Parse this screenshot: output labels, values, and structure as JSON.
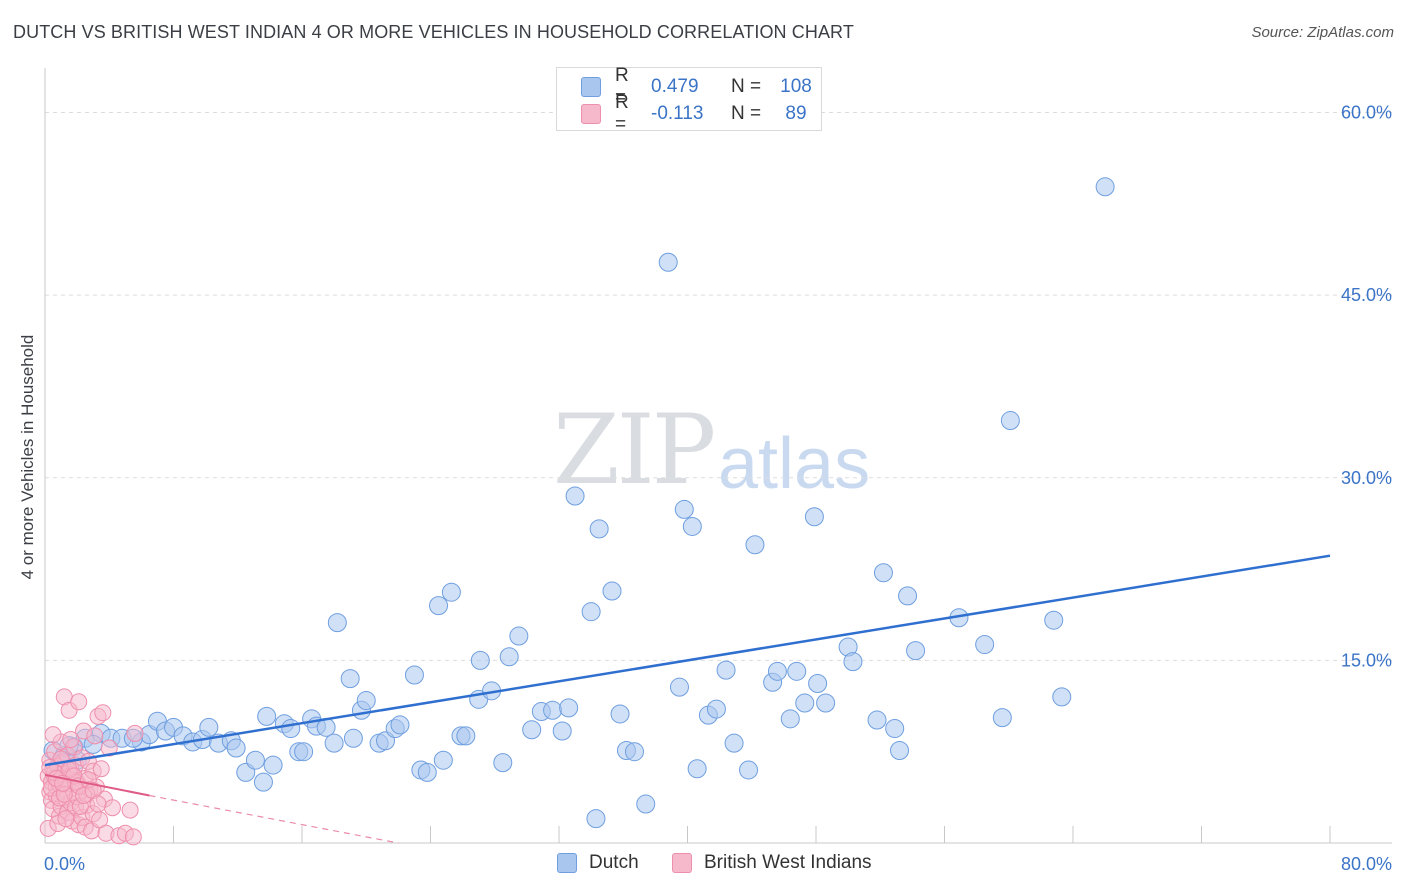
{
  "title": "DUTCH VS BRITISH WEST INDIAN 4 OR MORE VEHICLES IN HOUSEHOLD CORRELATION CHART",
  "source": "Source: ZipAtlas.com",
  "watermark": {
    "part1": "ZIP",
    "part2": "atlas"
  },
  "colors": {
    "dutch_fill": "#a9c6ee",
    "dutch_stroke": "#6f9fe0",
    "dutch_line": "#2f6fcf",
    "bwi_fill": "#f6b8cb",
    "bwi_stroke": "#ee8fad",
    "bwi_line": "#e05a86",
    "grid": "#dddddd",
    "tick_text": "#3b74c7"
  },
  "legend": {
    "rows": [
      {
        "r_label": "R =",
        "r_value": "0.479",
        "n_label": "N =",
        "n_value": "108"
      },
      {
        "r_label": "R =",
        "r_value": "-0.113",
        "n_label": "N =",
        "n_value": "89"
      }
    ]
  },
  "chart_data": {
    "type": "scatter",
    "title": "DUTCH VS BRITISH WEST INDIAN 4 OR MORE VEHICLES IN HOUSEHOLD CORRELATION CHART",
    "xlabel": "",
    "ylabel": "4 or more Vehicles in Household",
    "xlim": [
      0,
      80
    ],
    "ylim": [
      0,
      63
    ],
    "x_tick_labels": [
      "0.0%",
      "80.0%"
    ],
    "y_ticks": [
      15,
      30,
      45,
      60
    ],
    "y_tick_labels": [
      "15.0%",
      "30.0%",
      "45.0%",
      "60.0%"
    ],
    "grid": true,
    "legend_position": "top-center",
    "series": [
      {
        "name": "Dutch",
        "points": [
          [
            0.5,
            7.6
          ],
          [
            1.2,
            7.2
          ],
          [
            1.8,
            7.9
          ],
          [
            2.5,
            8.6
          ],
          [
            3.5,
            9.0
          ],
          [
            4.1,
            8.6
          ],
          [
            4.8,
            8.6
          ],
          [
            6.0,
            8.3
          ],
          [
            6.5,
            8.9
          ],
          [
            7.0,
            10.0
          ],
          [
            7.5,
            9.2
          ],
          [
            8.0,
            9.5
          ],
          [
            8.6,
            8.8
          ],
          [
            9.2,
            8.3
          ],
          [
            9.8,
            8.5
          ],
          [
            10.2,
            9.5
          ],
          [
            10.8,
            8.2
          ],
          [
            11.6,
            8.4
          ],
          [
            11.9,
            7.8
          ],
          [
            12.5,
            5.8
          ],
          [
            13.1,
            6.8
          ],
          [
            13.6,
            5.0
          ],
          [
            13.8,
            10.4
          ],
          [
            14.2,
            6.4
          ],
          [
            14.9,
            9.8
          ],
          [
            15.3,
            9.4
          ],
          [
            15.8,
            7.5
          ],
          [
            16.1,
            7.5
          ],
          [
            16.6,
            10.2
          ],
          [
            16.9,
            9.6
          ],
          [
            17.5,
            9.5
          ],
          [
            18.0,
            8.2
          ],
          [
            18.2,
            18.1
          ],
          [
            19.0,
            13.5
          ],
          [
            19.2,
            8.6
          ],
          [
            19.7,
            10.9
          ],
          [
            20.0,
            11.7
          ],
          [
            20.8,
            8.2
          ],
          [
            21.2,
            8.4
          ],
          [
            21.8,
            9.4
          ],
          [
            22.1,
            9.7
          ],
          [
            23.0,
            13.8
          ],
          [
            23.4,
            6.0
          ],
          [
            23.8,
            5.8
          ],
          [
            24.5,
            19.5
          ],
          [
            24.8,
            6.8
          ],
          [
            25.3,
            20.6
          ],
          [
            25.9,
            8.8
          ],
          [
            26.2,
            8.8
          ],
          [
            27.0,
            11.8
          ],
          [
            27.1,
            15.0
          ],
          [
            27.8,
            12.5
          ],
          [
            28.5,
            6.6
          ],
          [
            28.9,
            15.3
          ],
          [
            29.5,
            17.0
          ],
          [
            30.3,
            9.3
          ],
          [
            30.9,
            10.8
          ],
          [
            31.6,
            10.9
          ],
          [
            32.2,
            9.2
          ],
          [
            32.6,
            11.1
          ],
          [
            33.0,
            28.5
          ],
          [
            34.0,
            19.0
          ],
          [
            34.3,
            2.0
          ],
          [
            34.5,
            25.8
          ],
          [
            35.3,
            20.7
          ],
          [
            35.8,
            10.6
          ],
          [
            36.2,
            7.6
          ],
          [
            36.7,
            7.5
          ],
          [
            37.4,
            3.2
          ],
          [
            38.8,
            47.7
          ],
          [
            39.5,
            12.8
          ],
          [
            39.8,
            27.4
          ],
          [
            40.3,
            26.0
          ],
          [
            40.6,
            6.1
          ],
          [
            41.3,
            10.5
          ],
          [
            41.8,
            11.0
          ],
          [
            42.4,
            14.2
          ],
          [
            42.9,
            8.2
          ],
          [
            43.8,
            6.0
          ],
          [
            44.2,
            24.5
          ],
          [
            45.3,
            13.2
          ],
          [
            45.6,
            14.1
          ],
          [
            46.4,
            10.2
          ],
          [
            46.8,
            14.1
          ],
          [
            47.3,
            11.5
          ],
          [
            47.9,
            26.8
          ],
          [
            48.1,
            13.1
          ],
          [
            48.6,
            11.5
          ],
          [
            50.0,
            16.1
          ],
          [
            50.3,
            14.9
          ],
          [
            51.8,
            10.1
          ],
          [
            52.2,
            22.2
          ],
          [
            52.9,
            9.4
          ],
          [
            53.2,
            7.6
          ],
          [
            53.7,
            20.3
          ],
          [
            54.2,
            15.8
          ],
          [
            56.9,
            18.5
          ],
          [
            58.5,
            16.3
          ],
          [
            59.6,
            10.3
          ],
          [
            60.1,
            34.7
          ],
          [
            62.8,
            18.3
          ],
          [
            63.3,
            12.0
          ],
          [
            66.0,
            53.9
          ],
          [
            2.0,
            6.8
          ],
          [
            3.0,
            8.1
          ],
          [
            5.5,
            8.6
          ],
          [
            0.9,
            6.5
          ],
          [
            1.5,
            8.0
          ]
        ]
      },
      {
        "name": "British West Indians",
        "points": [
          [
            0.2,
            5.5
          ],
          [
            0.3,
            6.8
          ],
          [
            0.3,
            4.2
          ],
          [
            0.4,
            5.0
          ],
          [
            0.4,
            3.5
          ],
          [
            0.5,
            6.0
          ],
          [
            0.5,
            2.8
          ],
          [
            0.6,
            5.4
          ],
          [
            0.6,
            7.5
          ],
          [
            0.7,
            4.6
          ],
          [
            0.7,
            3.9
          ],
          [
            0.8,
            6.3
          ],
          [
            0.8,
            5.1
          ],
          [
            0.9,
            2.2
          ],
          [
            0.9,
            4.8
          ],
          [
            1.0,
            8.3
          ],
          [
            1.0,
            3.0
          ],
          [
            1.1,
            5.7
          ],
          [
            1.1,
            6.6
          ],
          [
            1.2,
            4.4
          ],
          [
            1.2,
            12.0
          ],
          [
            1.3,
            3.6
          ],
          [
            1.3,
            5.2
          ],
          [
            1.4,
            7.2
          ],
          [
            1.4,
            2.5
          ],
          [
            1.5,
            10.9
          ],
          [
            1.5,
            4.9
          ],
          [
            1.6,
            6.1
          ],
          [
            1.6,
            3.3
          ],
          [
            1.7,
            5.6
          ],
          [
            1.7,
            1.8
          ],
          [
            1.8,
            4.1
          ],
          [
            1.8,
            7.9
          ],
          [
            1.9,
            6.4
          ],
          [
            1.9,
            2.9
          ],
          [
            2.0,
            5.0
          ],
          [
            2.0,
            3.8
          ],
          [
            2.1,
            11.6
          ],
          [
            2.1,
            1.5
          ],
          [
            2.2,
            4.6
          ],
          [
            2.3,
            7.0
          ],
          [
            2.3,
            2.1
          ],
          [
            2.4,
            9.2
          ],
          [
            2.5,
            5.3
          ],
          [
            2.5,
            1.3
          ],
          [
            2.6,
            3.1
          ],
          [
            2.7,
            6.7
          ],
          [
            2.8,
            4.4
          ],
          [
            2.9,
            1.0
          ],
          [
            3.0,
            5.9
          ],
          [
            3.0,
            2.4
          ],
          [
            3.1,
            8.8
          ],
          [
            3.2,
            4.6
          ],
          [
            3.3,
            10.4
          ],
          [
            3.4,
            1.9
          ],
          [
            3.5,
            6.1
          ],
          [
            3.6,
            10.7
          ],
          [
            3.7,
            3.6
          ],
          [
            3.8,
            0.8
          ],
          [
            4.0,
            7.8
          ],
          [
            4.2,
            2.9
          ],
          [
            4.6,
            0.6
          ],
          [
            5.0,
            0.8
          ],
          [
            5.3,
            2.7
          ],
          [
            5.5,
            0.5
          ],
          [
            5.6,
            9.0
          ],
          [
            0.2,
            1.2
          ],
          [
            0.5,
            8.9
          ],
          [
            0.8,
            1.6
          ],
          [
            1.0,
            6.9
          ],
          [
            1.3,
            2.0
          ],
          [
            1.6,
            8.5
          ],
          [
            1.9,
            5.0
          ],
          [
            2.2,
            3.0
          ],
          [
            2.6,
            4.0
          ],
          [
            0.4,
            4.5
          ],
          [
            0.6,
            5.8
          ],
          [
            0.9,
            3.7
          ],
          [
            1.2,
            4.0
          ],
          [
            1.5,
            6.0
          ],
          [
            1.8,
            5.5
          ],
          [
            2.1,
            4.7
          ],
          [
            2.4,
            3.9
          ],
          [
            2.7,
            5.2
          ],
          [
            3.0,
            4.3
          ],
          [
            3.3,
            3.2
          ],
          [
            0.3,
            6.2
          ],
          [
            0.7,
            5.3
          ],
          [
            1.1,
            4.9
          ]
        ]
      }
    ],
    "trend_lines": [
      {
        "series": "Dutch",
        "x": [
          0,
          80
        ],
        "y": [
          6.4,
          23.6
        ]
      },
      {
        "series": "British West Indians",
        "solid_x": [
          0,
          6.5
        ],
        "solid_y": [
          5.6,
          3.9
        ],
        "dashed_x": [
          6.5,
          22
        ],
        "dashed_y": [
          3.9,
          0.0
        ]
      }
    ]
  },
  "bottom_legend": {
    "items": [
      {
        "label": "Dutch"
      },
      {
        "label": "British West Indians"
      }
    ]
  }
}
